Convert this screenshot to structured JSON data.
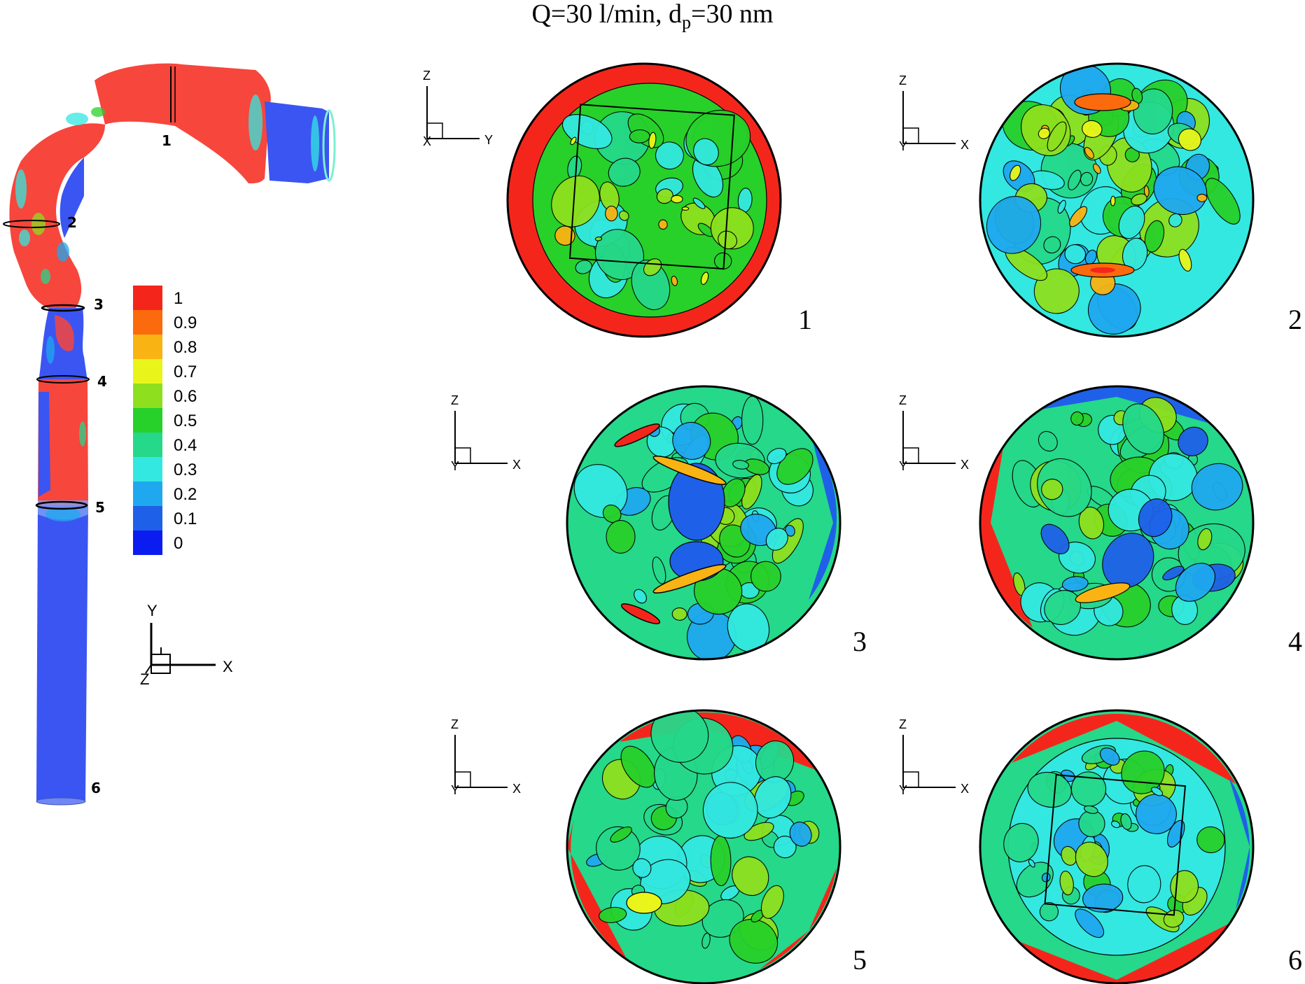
{
  "title": {
    "main": "Q=30 l/min, d",
    "sub": "p",
    "rest": "=30 nm"
  },
  "colors": {
    "c0": "#0a1cf0",
    "c01": "#1f60e8",
    "c02": "#1fa8ef",
    "c03": "#33e8e0",
    "c04": "#25d88a",
    "c05": "#28d02a",
    "c06": "#8ee01e",
    "c07": "#e9f51a",
    "c08": "#f9b312",
    "c09": "#fb6a0c",
    "c1": "#f4261c",
    "airway_red": "#f7463c",
    "airway_blue": "#3b55f2"
  },
  "legend": {
    "labels": [
      "1",
      "0.9",
      "0.8",
      "0.7",
      "0.6",
      "0.5",
      "0.4",
      "0.3",
      "0.2",
      "0.1",
      "0"
    ]
  },
  "airway_sections": [
    "1",
    "2",
    "3",
    "4",
    "5",
    "6"
  ],
  "main_axes": {
    "vertical": "Y",
    "horizontal": "X",
    "depth": "Z"
  },
  "panels": [
    {
      "number": "1",
      "axis_v": "Z",
      "axis_h": "Y",
      "axis_d": "X"
    },
    {
      "number": "2",
      "axis_v": "Z",
      "axis_h": "X",
      "axis_d": "Y"
    },
    {
      "number": "3",
      "axis_v": "Z",
      "axis_h": "X",
      "axis_d": "Y"
    },
    {
      "number": "4",
      "axis_v": "Z",
      "axis_h": "X",
      "axis_d": "Y"
    },
    {
      "number": "5",
      "axis_v": "Z",
      "axis_h": "X",
      "axis_d": "Y"
    },
    {
      "number": "6",
      "axis_v": "Z",
      "axis_h": "X",
      "axis_d": "Y"
    }
  ]
}
